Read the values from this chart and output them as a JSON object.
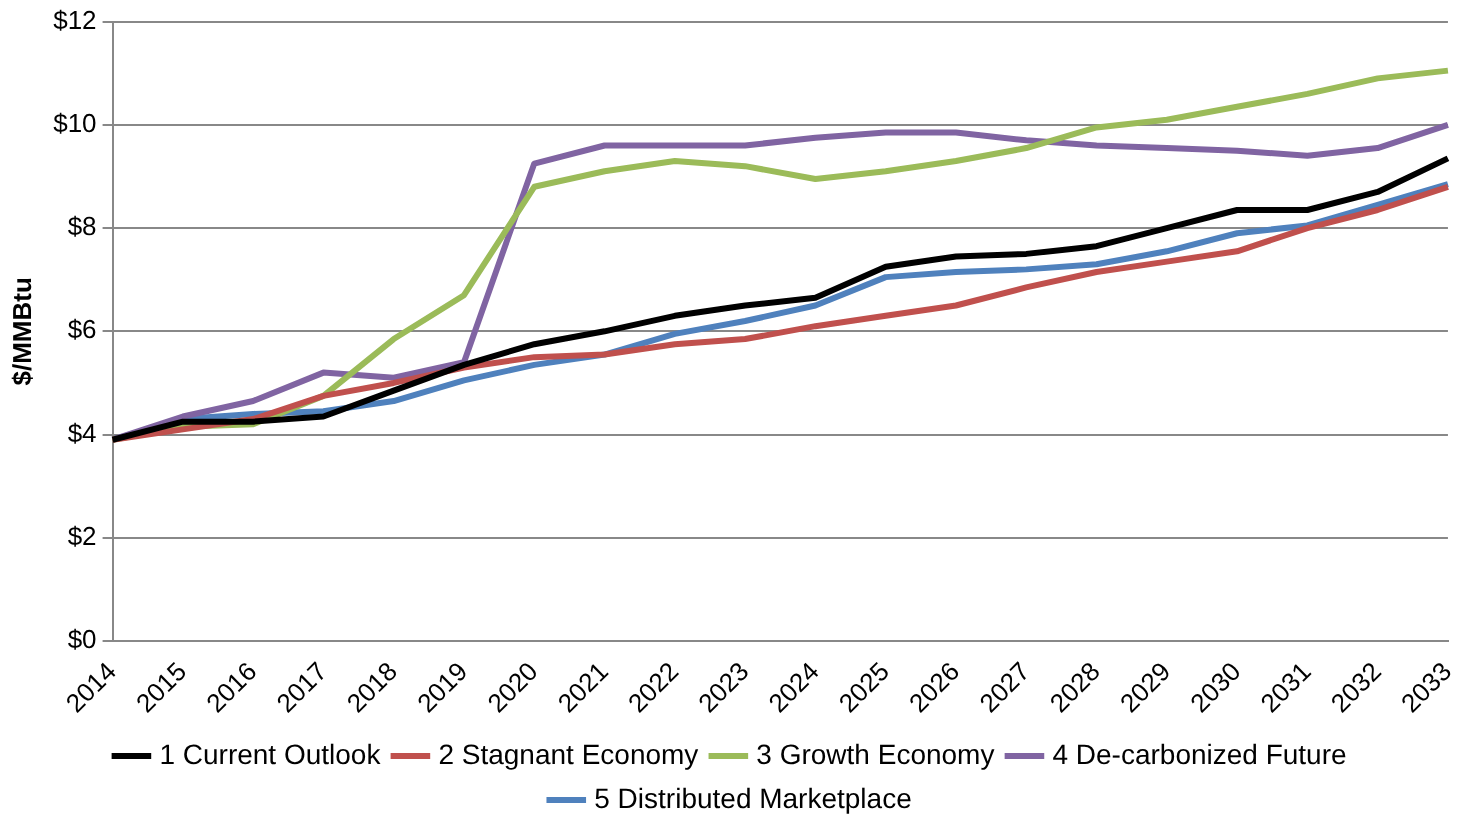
{
  "chart_data": {
    "type": "line",
    "ylabel": "$/MMBtu",
    "categories": [
      "2014",
      "2015",
      "2016",
      "2017",
      "2018",
      "2019",
      "2020",
      "2021",
      "2022",
      "2023",
      "2024",
      "2025",
      "2026",
      "2027",
      "2028",
      "2029",
      "2030",
      "2031",
      "2032",
      "2033"
    ],
    "series": [
      {
        "name": "1 Current Outlook",
        "color": "#000000",
        "values": [
          3.9,
          4.25,
          4.25,
          4.35,
          4.85,
          5.35,
          5.75,
          6.0,
          6.3,
          6.5,
          6.65,
          7.25,
          7.45,
          7.5,
          7.65,
          8.0,
          8.35,
          8.35,
          8.7,
          9.35
        ]
      },
      {
        "name": "2 Stagnant Economy",
        "color": "#c0504d",
        "values": [
          3.9,
          4.1,
          4.3,
          4.75,
          5.0,
          5.3,
          5.5,
          5.55,
          5.75,
          5.85,
          6.1,
          6.3,
          6.5,
          6.85,
          7.15,
          7.35,
          7.55,
          8.0,
          8.35,
          8.8
        ]
      },
      {
        "name": "3 Growth Economy",
        "color": "#9bbb59",
        "values": [
          3.9,
          4.15,
          4.2,
          4.75,
          5.85,
          6.7,
          8.8,
          9.1,
          9.3,
          9.2,
          8.95,
          9.1,
          9.3,
          9.55,
          9.95,
          10.1,
          10.35,
          10.6,
          10.9,
          11.05
        ]
      },
      {
        "name": "4 De-carbonized Future",
        "color": "#8064a2",
        "values": [
          3.9,
          4.35,
          4.65,
          5.2,
          5.1,
          5.4,
          9.25,
          9.6,
          9.6,
          9.6,
          9.75,
          9.85,
          9.85,
          9.7,
          9.6,
          9.55,
          9.5,
          9.4,
          9.55,
          10.0
        ]
      },
      {
        "name": "5 Distributed Marketplace",
        "color": "#4f81bd",
        "values": [
          3.9,
          4.3,
          4.4,
          4.45,
          4.65,
          5.05,
          5.35,
          5.55,
          5.95,
          6.2,
          6.5,
          7.05,
          7.15,
          7.2,
          7.3,
          7.55,
          7.9,
          8.05,
          8.45,
          8.85
        ]
      }
    ],
    "ylim": [
      0,
      12
    ],
    "yticks": [
      {
        "value": 0,
        "label": "$0"
      },
      {
        "value": 2,
        "label": "$2"
      },
      {
        "value": 4,
        "label": "$4"
      },
      {
        "value": 6,
        "label": "$6"
      },
      {
        "value": 8,
        "label": "$8"
      },
      {
        "value": 10,
        "label": "$10"
      },
      {
        "value": 12,
        "label": "$12"
      }
    ],
    "grid": "y",
    "legend": "bottom",
    "marker": "none",
    "line_style": "solid"
  }
}
